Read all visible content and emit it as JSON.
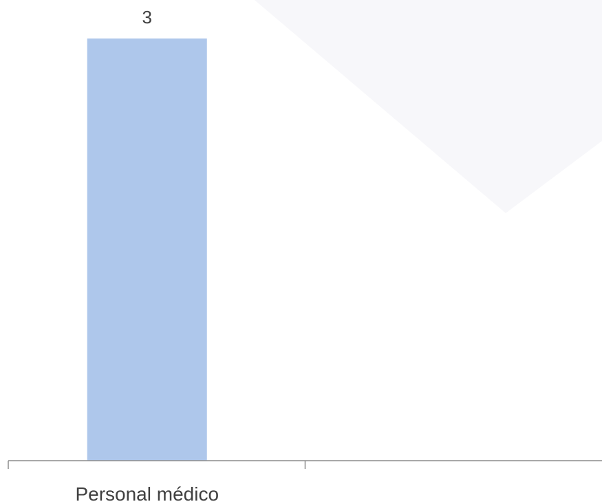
{
  "chart_data": {
    "type": "bar",
    "categories": [
      "Personal médico",
      ""
    ],
    "values": [
      3,
      null
    ],
    "ylim": [
      0,
      3
    ],
    "grid": false,
    "legend": "none",
    "show_data_labels": true,
    "colors": {
      "bar": "#aec7eb",
      "axis": "#8c8c8c",
      "text": "#404040",
      "background_shape": "#f7f7fa"
    }
  }
}
